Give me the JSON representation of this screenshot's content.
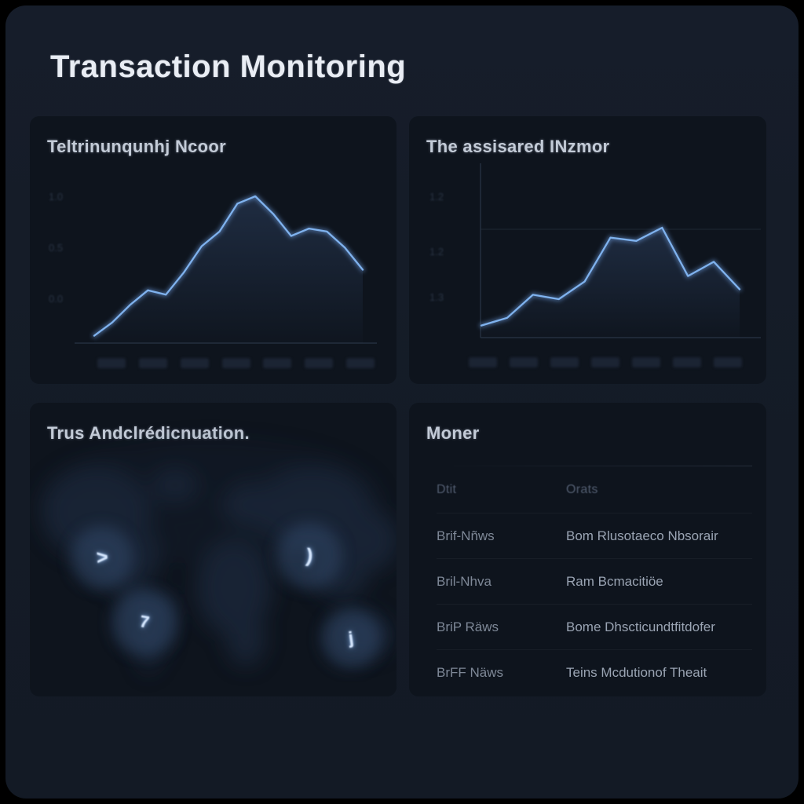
{
  "app_title": "Transaction Monitoring",
  "panels": {
    "trend_left": {
      "title": "Teltrinunqunhj Ncoor",
      "y_ticks": [
        "1.0",
        "0.5",
        "0.0"
      ],
      "x_tick_count": 7
    },
    "trend_right": {
      "title": "The assisared INzmor",
      "y_ticks": [
        "1.2",
        "1.2",
        "1.3"
      ],
      "x_tick_count": 7
    },
    "map": {
      "title": "Trus Andclrédicnuation.",
      "markers": [
        {
          "glyph": ">",
          "region": "north-america"
        },
        {
          "glyph": "7",
          "region": "south-america"
        },
        {
          "glyph": ")",
          "region": "asia"
        },
        {
          "glyph": "j",
          "region": "australia"
        }
      ]
    },
    "table": {
      "title": "Moner",
      "columns": [
        "Dtit",
        "Orats"
      ],
      "rows": [
        {
          "source": "Brif-Nñws",
          "detail": "Bom Rlusotaeco Nbsorair"
        },
        {
          "source": "Bril-Nhva",
          "detail": "Ram Bcmacitiöe"
        },
        {
          "source": "BriP Räws",
          "detail": "Bome Dhscticundtfitdofer"
        },
        {
          "source": "BrFF Näws",
          "detail": "Teins Mcdutionof Theait"
        }
      ]
    }
  },
  "chart_data": [
    {
      "type": "line",
      "title": "Teltrinunqunhj Ncoor",
      "x": [
        1,
        2,
        3,
        4,
        5,
        6,
        7,
        8,
        9,
        10,
        11,
        12,
        13,
        14,
        15,
        16
      ],
      "values": [
        0.05,
        0.14,
        0.26,
        0.36,
        0.33,
        0.48,
        0.66,
        0.76,
        0.95,
        1.0,
        0.88,
        0.73,
        0.78,
        0.76,
        0.65,
        0.5
      ],
      "ylim": [
        0,
        1
      ],
      "y_tick_labels": [
        "1.0",
        "0.5",
        "0.0"
      ],
      "x_tick_count": 7,
      "line_color": "#7fb2ee",
      "legend": "none",
      "grid": "bottom-axis-only"
    },
    {
      "type": "line",
      "title": "The assisared INzmor",
      "x": [
        1,
        2,
        3,
        4,
        5,
        6,
        7,
        8,
        9,
        10,
        11
      ],
      "values": [
        0.11,
        0.18,
        0.39,
        0.35,
        0.51,
        0.91,
        0.88,
        1.0,
        0.56,
        0.69,
        0.44
      ],
      "ylim": [
        0,
        1
      ],
      "y_tick_labels": [
        "1.2",
        "1.2",
        "1.3"
      ],
      "x_tick_count": 7,
      "line_color": "#7fb2ee",
      "legend": "none",
      "grid": "left-axis-bottom-axis-one-horizontal-gridline"
    }
  ],
  "colors": {
    "background": "#141b26",
    "panel": "#0e141d",
    "accent_line": "#7fb2ee",
    "title_text": "#e9edf4",
    "panel_title_text": "#c3cbd7",
    "table_text": "#9aa4b3",
    "axis_line": "#25303f"
  }
}
